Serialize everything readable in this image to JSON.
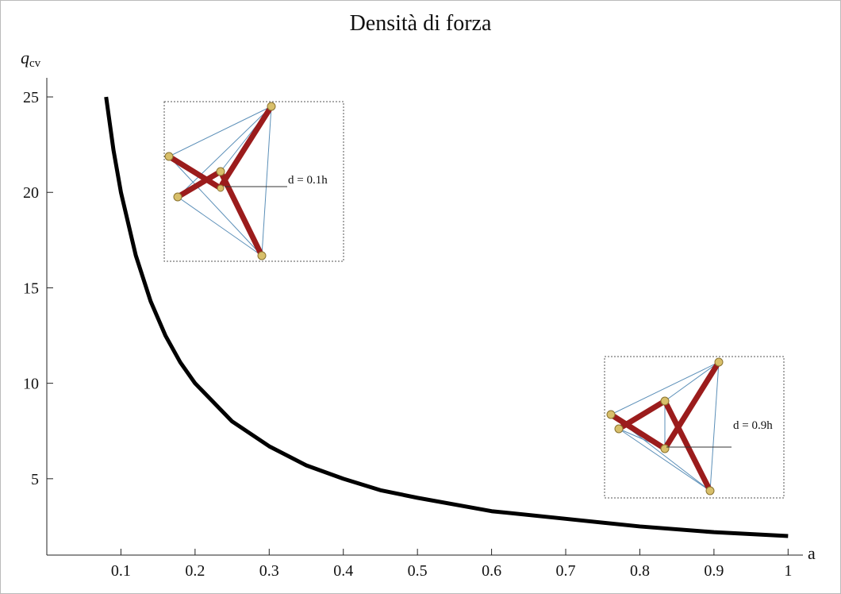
{
  "chart_data": {
    "type": "line",
    "title": "Densità di forza",
    "ylabel": "q",
    "ylabel_subscript": "cv",
    "xlabel": "a",
    "x": [
      0.08,
      0.09,
      0.1,
      0.12,
      0.14,
      0.16,
      0.18,
      0.2,
      0.25,
      0.3,
      0.35,
      0.4,
      0.45,
      0.5,
      0.6,
      0.7,
      0.8,
      0.9,
      1.0
    ],
    "series": [
      {
        "color": "#000000",
        "values": [
          25,
          22.2,
          20,
          16.7,
          14.3,
          12.5,
          11.1,
          10,
          8,
          6.7,
          5.7,
          5,
          4.4,
          4,
          3.3,
          2.9,
          2.5,
          2.2,
          2
        ]
      }
    ],
    "xlim": [
      0,
      1.02
    ],
    "ylim": [
      1,
      26
    ],
    "xticks": [
      0.1,
      0.2,
      0.3,
      0.4,
      0.5,
      0.6,
      0.7,
      0.8,
      0.9,
      1
    ],
    "yticks": [
      5,
      10,
      15,
      20,
      25
    ],
    "annotations": [
      "d = 0.1h",
      "d = 0.9h"
    ]
  }
}
